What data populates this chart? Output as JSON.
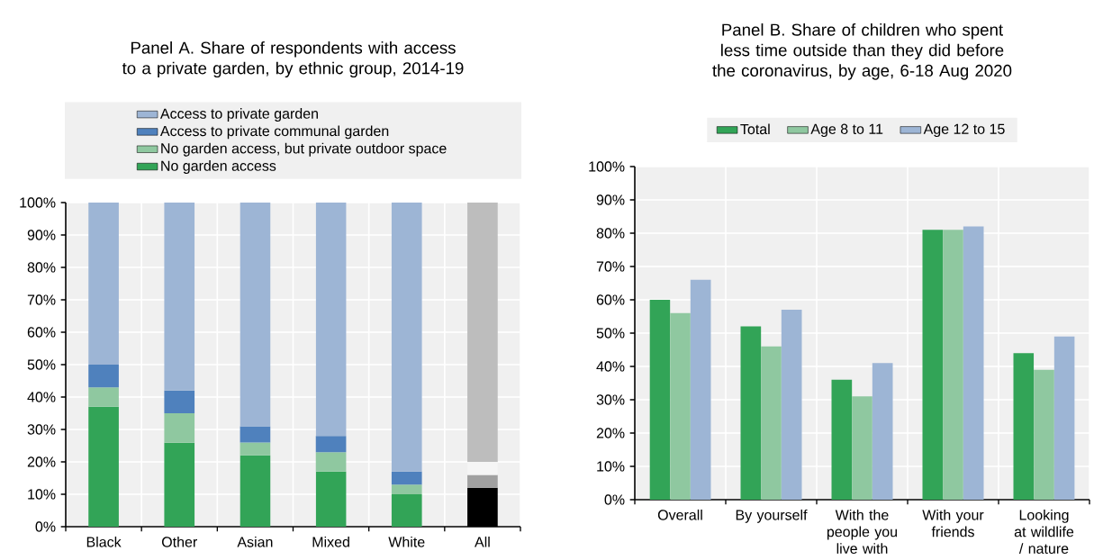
{
  "chart_data": [
    {
      "type": "bar",
      "stacked": true,
      "title": "Panel A. Share of respondents with access to a private garden, by ethnic group, 2014-19",
      "categories": [
        "Black",
        "Other",
        "Asian",
        "Mixed",
        "White",
        "All"
      ],
      "series": [
        {
          "name": "No garden access",
          "color": "#32a457",
          "colors": [
            "#32a457",
            "#32a457",
            "#32a457",
            "#32a457",
            "#32a457",
            "#000000"
          ],
          "values": [
            37,
            26,
            22,
            17,
            10,
            12
          ]
        },
        {
          "name": "No garden access, but private outdoor space",
          "color": "#8fc8a0",
          "colors": [
            "#8fc8a0",
            "#8fc8a0",
            "#8fc8a0",
            "#8fc8a0",
            "#8fc8a0",
            "#a0a0a0"
          ],
          "values": [
            6,
            9,
            4,
            6,
            3,
            4
          ]
        },
        {
          "name": "Access to private communal garden",
          "color": "#4f81bd",
          "colors": [
            "#4f81bd",
            "#4f81bd",
            "#4f81bd",
            "#4f81bd",
            "#4f81bd",
            "#f5f5f5"
          ],
          "values": [
            7,
            7,
            5,
            5,
            4,
            4
          ]
        },
        {
          "name": "Access to private garden",
          "color": "#9db5d5",
          "colors": [
            "#9db5d5",
            "#9db5d5",
            "#9db5d5",
            "#9db5d5",
            "#9db5d5",
            "#bdbdbd"
          ],
          "values": [
            50,
            58,
            69,
            72,
            83,
            80
          ]
        }
      ],
      "ylim": [
        0,
        100
      ],
      "yticks": [
        {
          "value": 0,
          "label": "0%"
        },
        {
          "value": 10,
          "label": "10%"
        },
        {
          "value": 20,
          "label": "20%"
        },
        {
          "value": 30,
          "label": "30%"
        },
        {
          "value": 40,
          "label": "40%"
        },
        {
          "value": 50,
          "label": "50%"
        },
        {
          "value": 60,
          "label": "60%"
        },
        {
          "value": 70,
          "label": "70%"
        },
        {
          "value": 80,
          "label": "80%"
        },
        {
          "value": 90,
          "label": "90%"
        },
        {
          "value": 100,
          "label": "100%"
        }
      ],
      "grid": true,
      "legend": "top"
    },
    {
      "type": "bar",
      "title": "Panel B. Share of children who spent less time outside than they did before the coronavirus, by age, 6-18 Aug 2020",
      "categories": [
        "Overall",
        "By yourself",
        "With the people you live with",
        "With your friends",
        "Looking at wildlife / nature"
      ],
      "series": [
        {
          "name": "Total",
          "color": "#32a457",
          "values": [
            60,
            52,
            36,
            81,
            44
          ]
        },
        {
          "name": "Age 8 to 11",
          "color": "#8fc8a0",
          "values": [
            56,
            46,
            31,
            81,
            39
          ]
        },
        {
          "name": "Age 12 to 15",
          "color": "#9db5d5",
          "values": [
            66,
            57,
            41,
            82,
            49
          ]
        }
      ],
      "ylim": [
        0,
        100
      ],
      "yticks": [
        {
          "value": 0,
          "label": "0%"
        },
        {
          "value": 10,
          "label": "10%"
        },
        {
          "value": 20,
          "label": "20%"
        },
        {
          "value": 30,
          "label": "30%"
        },
        {
          "value": 40,
          "label": "40%"
        },
        {
          "value": 50,
          "label": "50%"
        },
        {
          "value": 60,
          "label": "60%"
        },
        {
          "value": 70,
          "label": "70%"
        },
        {
          "value": 80,
          "label": "80%"
        },
        {
          "value": 90,
          "label": "90%"
        },
        {
          "value": 100,
          "label": "100%"
        }
      ],
      "grid": true,
      "legend": "top"
    }
  ]
}
